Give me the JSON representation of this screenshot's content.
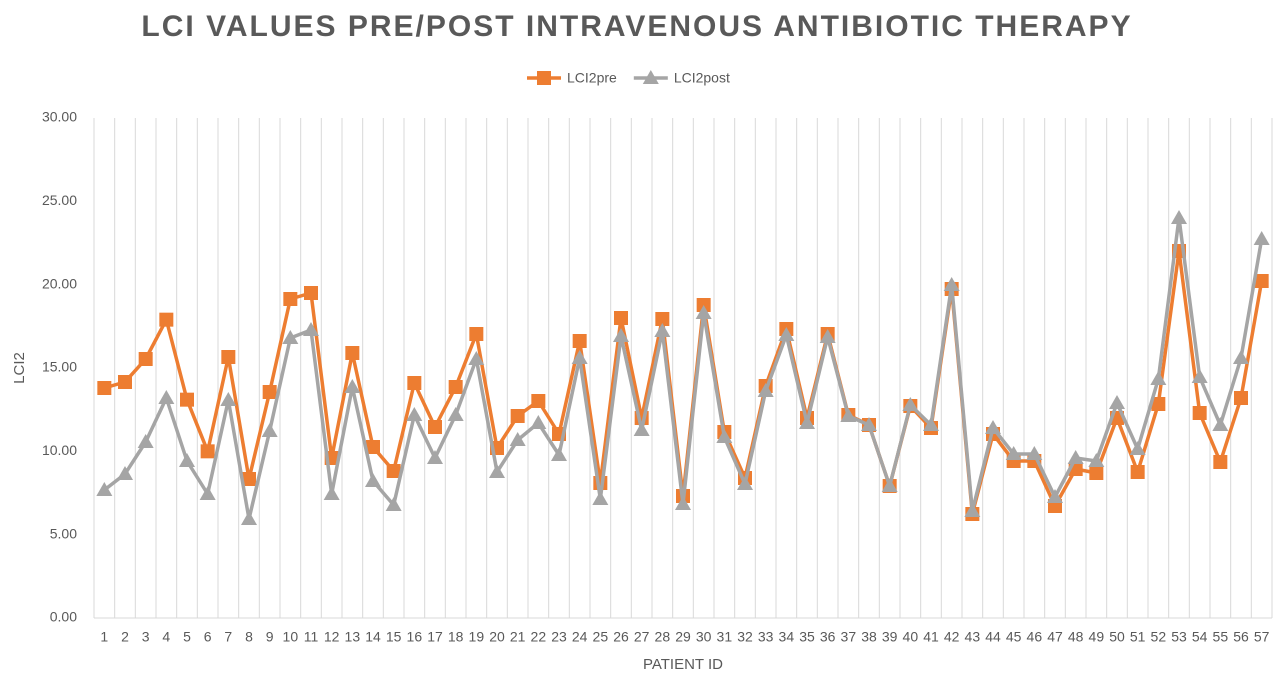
{
  "chart_data": {
    "type": "line",
    "title": "LCI VALUES PRE/POST INTRAVENOUS ANTIBIOTIC THERAPY",
    "xlabel": "PATIENT ID",
    "ylabel": "LCI2",
    "categories": [
      "1",
      "2",
      "3",
      "4",
      "5",
      "6",
      "7",
      "8",
      "9",
      "10",
      "11",
      "12",
      "13",
      "14",
      "15",
      "16",
      "17",
      "18",
      "19",
      "20",
      "21",
      "22",
      "23",
      "24",
      "25",
      "26",
      "27",
      "28",
      "29",
      "30",
      "31",
      "32",
      "33",
      "34",
      "35",
      "36",
      "37",
      "38",
      "39",
      "40",
      "41",
      "42",
      "43",
      "44",
      "45",
      "46",
      "47",
      "48",
      "49",
      "50",
      "51",
      "52",
      "53",
      "54",
      "55",
      "56",
      "57"
    ],
    "series": [
      {
        "name": "LCI2pre",
        "color": "#ED7D31",
        "marker": "square",
        "values": [
          13.8,
          14.16,
          15.54,
          17.9,
          13.1,
          10.0,
          15.66,
          8.34,
          13.56,
          19.14,
          19.5,
          9.6,
          15.9,
          10.26,
          8.82,
          14.1,
          11.46,
          13.86,
          17.04,
          10.2,
          12.12,
          13.02,
          11.04,
          16.62,
          8.1,
          18.0,
          12.0,
          17.94,
          7.32,
          18.78,
          11.16,
          8.4,
          13.92,
          17.34,
          12.0,
          17.04,
          12.18,
          11.58,
          7.92,
          12.72,
          11.4,
          19.74,
          6.24,
          11.04,
          9.42,
          9.42,
          6.72,
          8.94,
          8.7,
          12.0,
          8.76,
          12.84,
          22.02,
          12.3,
          9.36,
          13.2,
          20.22
        ]
      },
      {
        "name": "LCI2post",
        "color": "#A5A5A5",
        "marker": "triangle",
        "values": [
          7.68,
          8.64,
          10.56,
          13.2,
          9.42,
          7.44,
          13.08,
          5.94,
          11.22,
          16.8,
          17.28,
          7.44,
          13.86,
          8.22,
          6.78,
          12.18,
          9.6,
          12.18,
          15.54,
          8.76,
          10.68,
          11.7,
          9.78,
          15.6,
          7.14,
          16.92,
          11.28,
          17.22,
          6.84,
          18.3,
          10.86,
          8.04,
          13.62,
          16.98,
          11.7,
          16.86,
          12.12,
          11.58,
          7.92,
          12.78,
          11.58,
          19.98,
          6.42,
          11.4,
          9.84,
          9.84,
          7.26,
          9.6,
          9.42,
          12.9,
          10.14,
          14.34,
          24.0,
          14.46,
          11.58,
          15.6,
          22.74
        ]
      }
    ],
    "ylim": [
      0,
      30
    ],
    "yticks": [
      {
        "value": 0,
        "label": "0.00"
      },
      {
        "value": 5,
        "label": "5.00"
      },
      {
        "value": 10,
        "label": "10.00"
      },
      {
        "value": 15,
        "label": "15.00"
      },
      {
        "value": 20,
        "label": "20.00"
      },
      {
        "value": 25,
        "label": "25.00"
      },
      {
        "value": 30,
        "label": "30.00"
      }
    ],
    "xgrid": true,
    "legend": "top"
  }
}
